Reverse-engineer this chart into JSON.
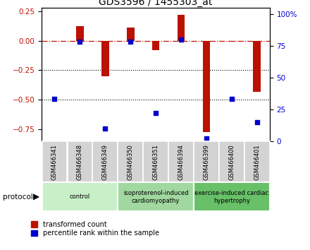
{
  "title": "GDS3596 / 1455303_at",
  "samples": [
    "GSM466341",
    "GSM466348",
    "GSM466349",
    "GSM466350",
    "GSM466351",
    "GSM466394",
    "GSM466399",
    "GSM466400",
    "GSM466401"
  ],
  "red_values": [
    0.0,
    0.12,
    -0.3,
    0.11,
    -0.08,
    0.22,
    -0.77,
    -0.01,
    -0.43
  ],
  "blue_pct": [
    33,
    78,
    10,
    78,
    22,
    80,
    2,
    33,
    15
  ],
  "groups": [
    {
      "label": "control",
      "start": 0,
      "end": 3,
      "color": "#c8f0c8"
    },
    {
      "label": "isoproterenol-induced\ncardiomyopathy",
      "start": 3,
      "end": 6,
      "color": "#a0d8a0"
    },
    {
      "label": "exercise-induced cardiac\nhypertrophy",
      "start": 6,
      "end": 9,
      "color": "#68c068"
    }
  ],
  "ylim_left": [
    -0.85,
    0.28
  ],
  "ylim_right": [
    0,
    105
  ],
  "yticks_left": [
    -0.75,
    -0.5,
    -0.25,
    0.0,
    0.25
  ],
  "yticks_right": [
    0,
    25,
    50,
    75,
    100
  ],
  "red_color": "#bb1100",
  "blue_color": "#0000cc",
  "bg_color": "#ffffff"
}
